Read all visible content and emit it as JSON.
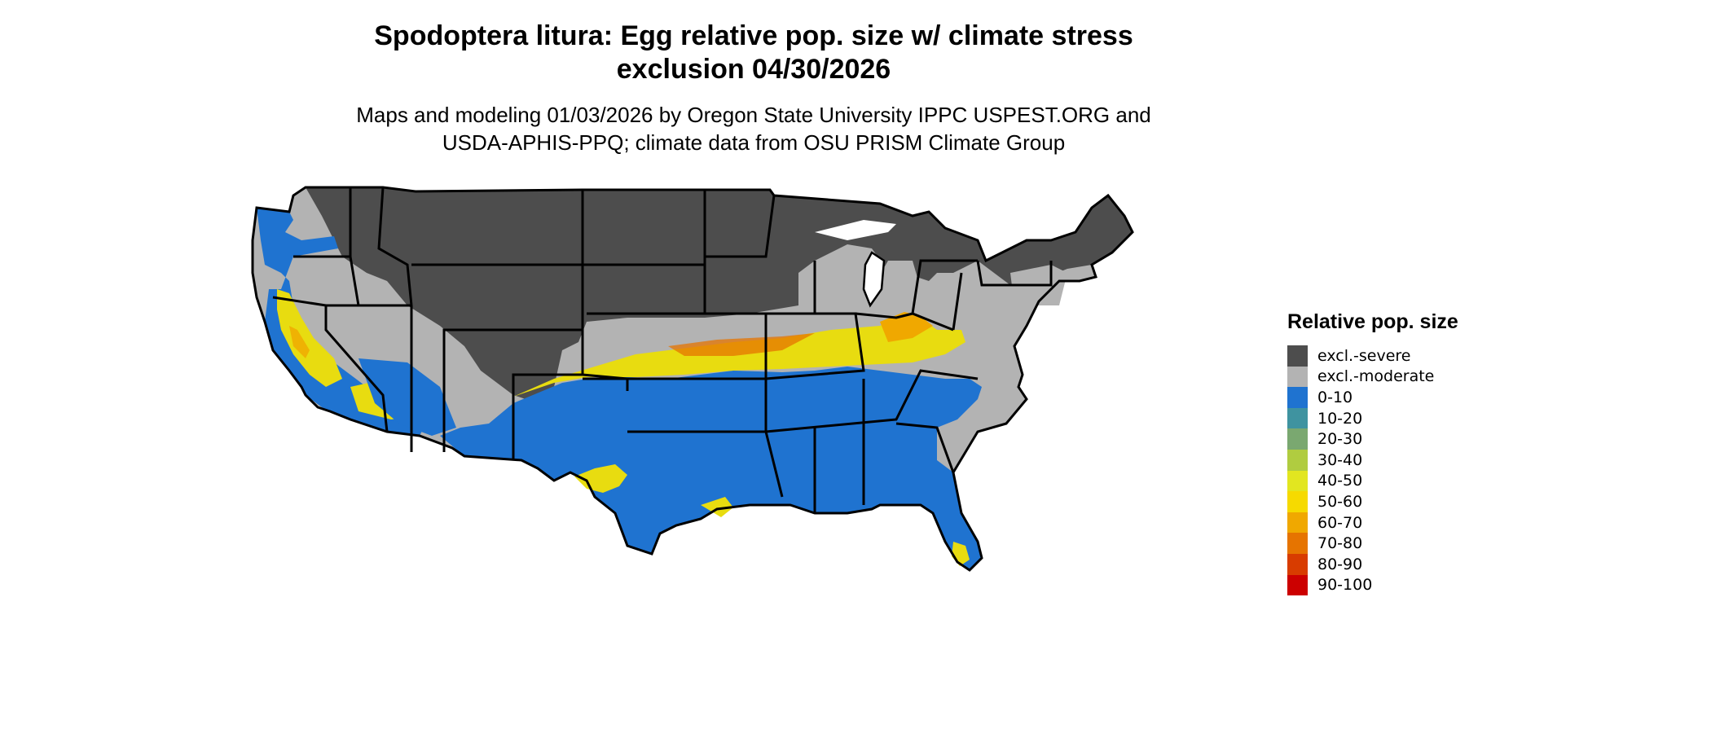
{
  "title_line1": "Spodoptera litura: Egg relative pop. size w/ climate stress",
  "title_line2": "exclusion 04/30/2026",
  "subtitle_line1": "Maps and modeling 01/03/2026 by Oregon State University IPPC USPEST.ORG and",
  "subtitle_line2": "USDA-APHIS-PPQ; climate data from OSU PRISM Climate Group",
  "legend": {
    "title": "Relative pop. size",
    "items": [
      {
        "label": "excl.-severe",
        "color": "#4d4d4d"
      },
      {
        "label": "excl.-moderate",
        "color": "#b3b3b3"
      },
      {
        "label": "0-10",
        "color": "#1f73d0"
      },
      {
        "label": "10-20",
        "color": "#3f93a0"
      },
      {
        "label": "20-30",
        "color": "#7aa870"
      },
      {
        "label": "30-40",
        "color": "#b0cc40"
      },
      {
        "label": "40-50",
        "color": "#e2e620"
      },
      {
        "label": "50-60",
        "color": "#f6da00"
      },
      {
        "label": "60-70",
        "color": "#f0a800"
      },
      {
        "label": "70-80",
        "color": "#e67400"
      },
      {
        "label": "80-90",
        "color": "#d83c00"
      },
      {
        "label": "90-100",
        "color": "#cc0000"
      }
    ]
  }
}
